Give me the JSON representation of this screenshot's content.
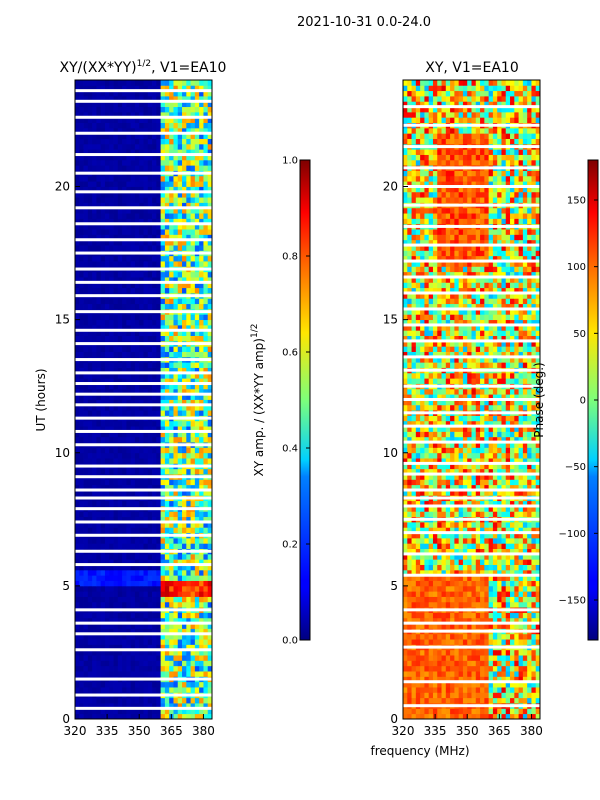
{
  "figure_title": "2021-10-31 0.0-24.0",
  "colors": {
    "background": "#ffffff",
    "frame": "#000000",
    "jet_dark_blue": "#00007f",
    "jet_red": "#b00000"
  },
  "chart_data": [
    {
      "type": "heatmap",
      "title": "XY/(XX*YY)",
      "title_exponent": "1/2",
      "title_suffix": ", V1=EA10",
      "xlabel": "frequency (MHz)",
      "ylabel": "UT (hours)",
      "xlim": [
        320,
        384
      ],
      "ylim": [
        0,
        24
      ],
      "x_ticks": [
        320,
        335,
        350,
        365,
        380
      ],
      "y_ticks": [
        0,
        5,
        10,
        15,
        20
      ],
      "colormap": "jet",
      "colorbar": {
        "label": "XY amp. / (XX*YY amp)",
        "label_exponent": "1/2",
        "range": [
          0.0,
          1.0
        ],
        "ticks": [
          "0.0",
          "0.2",
          "0.4",
          "0.6",
          "0.8",
          "1.0"
        ],
        "tick_values": [
          0.0,
          0.2,
          0.4,
          0.6,
          0.8,
          1.0
        ]
      },
      "description_bands": {
        "low_band_MHz": [
          320,
          360
        ],
        "low_band_value": 0.02,
        "high_band_MHz": [
          360,
          384
        ],
        "high_band_value_range": [
          0.2,
          0.75
        ]
      },
      "flagged_hours": [
        0.4,
        0.9,
        1.5,
        2.6,
        3.2,
        3.6,
        4.1,
        5.8,
        6.3,
        6.9,
        7.4,
        7.9,
        8.3,
        8.6,
        9.1,
        9.5,
        10.3,
        10.8,
        11.3,
        11.8,
        12.2,
        12.6,
        13.0,
        13.5,
        14.1,
        14.6,
        15.3,
        15.9,
        16.4,
        16.9,
        17.5,
        18.0,
        18.6,
        19.2,
        19.8,
        20.5,
        21.2,
        22.0,
        22.6,
        23.2,
        23.6
      ]
    },
    {
      "type": "heatmap",
      "title": "XY, V1=EA10",
      "xlabel": "",
      "ylabel": "",
      "xlim": [
        320,
        384
      ],
      "ylim": [
        0,
        24
      ],
      "x_ticks": [
        320,
        335,
        350,
        365,
        380
      ],
      "y_ticks": [
        0,
        5,
        10,
        15,
        20
      ],
      "colormap": "jet",
      "colorbar": {
        "label": "Phase (deg.)",
        "range": [
          -180,
          180
        ],
        "ticks": [
          "150",
          "100",
          "50",
          "0",
          "−50",
          "−100",
          "−150"
        ],
        "tick_values": [
          150,
          100,
          50,
          0,
          -50,
          -100,
          -150
        ]
      },
      "flagged_hours": [
        0.5,
        1.4,
        2.7,
        3.3,
        3.6,
        4.1,
        5.4,
        6.2,
        7.0,
        7.5,
        8.0,
        8.3,
        8.6,
        9.2,
        9.6,
        10.4,
        11.0,
        11.5,
        12.0,
        12.5,
        13.1,
        13.6,
        14.2,
        14.8,
        15.4,
        16.0,
        16.6,
        17.2,
        17.8,
        18.5,
        19.3,
        20.0,
        20.7,
        21.5,
        22.3,
        23.0
      ]
    }
  ],
  "shared_xlabel": "frequency (MHz)"
}
